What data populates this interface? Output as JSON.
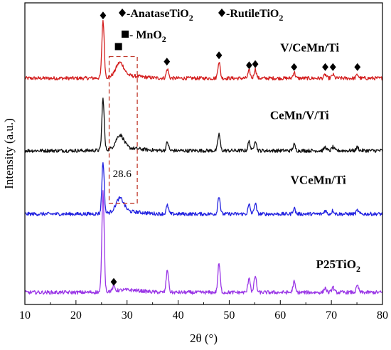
{
  "chart_data": {
    "type": "line",
    "title": "",
    "xlabel": "2θ (°)",
    "ylabel": "Intensity (a.u.)",
    "xlim": [
      10,
      80
    ],
    "xticks": [
      10,
      20,
      30,
      40,
      50,
      60,
      70,
      80
    ],
    "yticks_shown": false,
    "grid": false,
    "legend": {
      "placement": "top",
      "entries": [
        {
          "symbol": "diamond",
          "prefix": "♦",
          "text": "-AnataseTiO",
          "sub": "2"
        },
        {
          "symbol": "diamond",
          "prefix": "♦",
          "text": "-RutileTiO",
          "sub": "2"
        },
        {
          "symbol": "square",
          "prefix": "■",
          "text": "- MnO",
          "sub": "2"
        }
      ]
    },
    "anatase_peaks": [
      25.3,
      37.8,
      48.0,
      53.9,
      55.1,
      62.7,
      68.8,
      70.3,
      75.1
    ],
    "mno2_peaks": [
      28.6
    ],
    "rutile_peaks": [
      27.4
    ],
    "annotation": {
      "text": "28.6",
      "x_range": [
        26.5,
        32
      ]
    },
    "series": [
      {
        "name": "V/CeMn/Ti",
        "color": "#d42020",
        "baseline": 0.75,
        "peaks": [
          [
            25.3,
            0.19
          ],
          [
            28.6,
            0.045
          ],
          [
            37.9,
            0.03
          ],
          [
            48.0,
            0.055
          ],
          [
            53.9,
            0.025
          ],
          [
            55.1,
            0.03
          ],
          [
            62.7,
            0.02
          ],
          [
            68.8,
            0.012
          ],
          [
            70.3,
            0.012
          ],
          [
            75.1,
            0.012
          ]
        ]
      },
      {
        "name": "CeMn/V/Ti",
        "color": "#111111",
        "baseline": 0.51,
        "peaks": [
          [
            25.3,
            0.17
          ],
          [
            28.6,
            0.045
          ],
          [
            37.9,
            0.028
          ],
          [
            48.0,
            0.055
          ],
          [
            53.9,
            0.03
          ],
          [
            55.1,
            0.035
          ],
          [
            62.7,
            0.02
          ],
          [
            68.8,
            0.012
          ],
          [
            70.3,
            0.012
          ],
          [
            75.1,
            0.012
          ]
        ]
      },
      {
        "name": "VCeMn/Ti",
        "color": "#2323e0",
        "baseline": 0.3,
        "peaks": [
          [
            25.3,
            0.17
          ],
          [
            28.6,
            0.045
          ],
          [
            37.9,
            0.028
          ],
          [
            48.0,
            0.06
          ],
          [
            53.9,
            0.03
          ],
          [
            55.1,
            0.035
          ],
          [
            62.7,
            0.02
          ],
          [
            68.8,
            0.012
          ],
          [
            70.3,
            0.012
          ],
          [
            75.1,
            0.012
          ]
        ]
      },
      {
        "name": "P25TiO",
        "name_sub": "2",
        "color": "#9a36e6",
        "baseline": 0.04,
        "peaks": [
          [
            25.3,
            0.33
          ],
          [
            27.4,
            0.015
          ],
          [
            37.9,
            0.075
          ],
          [
            48.0,
            0.095
          ],
          [
            53.9,
            0.05
          ],
          [
            55.1,
            0.055
          ],
          [
            62.7,
            0.035
          ],
          [
            68.8,
            0.015
          ],
          [
            70.3,
            0.018
          ],
          [
            75.1,
            0.022
          ]
        ]
      }
    ]
  }
}
